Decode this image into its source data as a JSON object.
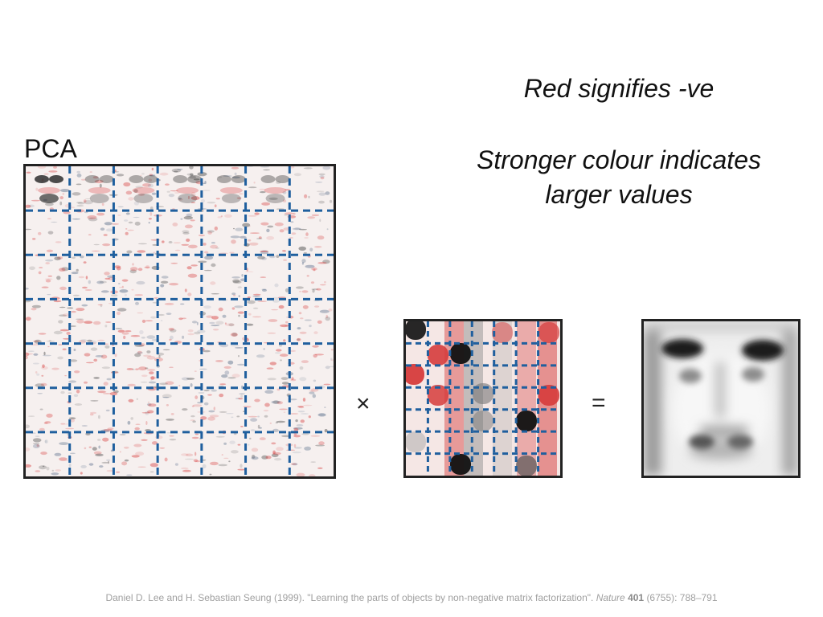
{
  "annotations": {
    "line1": "Red signifies -ve",
    "line2a": "Stronger colour indicates",
    "line2b": "larger values"
  },
  "panel_label": "PCA",
  "operators": {
    "times": "×",
    "equals": "="
  },
  "citation": {
    "text": "Daniel D. Lee and H. Sebastian Seung (1999). \"Learning the parts of objects by non-negative matrix factorization\".",
    "journal": "Nature",
    "volume": "401",
    "issue_pages": "(6755): 788–791"
  },
  "colors": {
    "negative": "#d63c3c",
    "positive": "#111111",
    "grid_lines": "#1f5f9e",
    "frame": "#222222",
    "citation_text": "#a0a0a0"
  },
  "pca_grid": {
    "rows": 7,
    "cols": 7
  },
  "coef_grid": {
    "rows": 7,
    "cols": 7
  }
}
